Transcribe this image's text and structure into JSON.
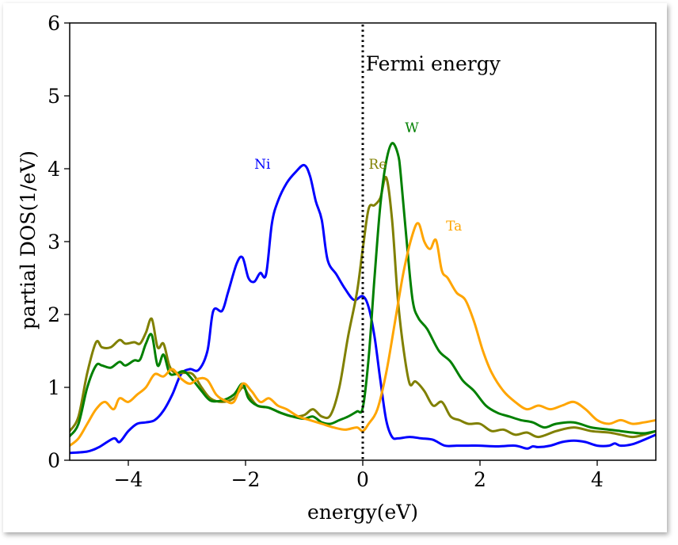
{
  "chart_data": {
    "type": "line",
    "title": "",
    "xlabel": "energy(eV)",
    "ylabel": "partial DOS(1/eV)",
    "xlim": [
      -5,
      5
    ],
    "ylim": [
      0,
      6
    ],
    "xticks": [
      -4,
      -2,
      0,
      2,
      4
    ],
    "xtick_labels": [
      "−4",
      "−2",
      "0",
      "2",
      "4"
    ],
    "yticks": [
      0,
      1,
      2,
      3,
      4,
      5,
      6
    ],
    "ytick_labels": [
      "0",
      "1",
      "2",
      "3",
      "4",
      "5",
      "6"
    ],
    "grid": false,
    "vline": {
      "x": 0,
      "style": "dotted",
      "color": "#000000",
      "label": "Fermi energy",
      "label_pos": [
        0.05,
        5.35
      ]
    },
    "series": [
      {
        "name": "Ni",
        "color": "#0000ff",
        "label_pos": [
          -1.85,
          4.0
        ],
        "x": [
          -5.0,
          -4.7,
          -4.5,
          -4.25,
          -4.15,
          -4.0,
          -3.85,
          -3.7,
          -3.55,
          -3.4,
          -3.25,
          -3.1,
          -2.95,
          -2.8,
          -2.65,
          -2.55,
          -2.4,
          -2.3,
          -2.15,
          -2.05,
          -1.95,
          -1.85,
          -1.75,
          -1.65,
          -1.55,
          -1.45,
          -1.3,
          -1.15,
          -1.0,
          -0.9,
          -0.8,
          -0.7,
          -0.6,
          -0.45,
          -0.3,
          -0.15,
          0.0,
          0.1,
          0.2,
          0.3,
          0.4,
          0.5,
          0.6,
          0.8,
          1.0,
          1.2,
          1.4,
          1.6,
          1.8,
          2.0,
          2.3,
          2.6,
          2.8,
          2.9,
          3.0,
          3.2,
          3.4,
          3.6,
          3.8,
          4.0,
          4.2,
          4.3,
          4.4,
          4.6,
          4.8,
          5.0
        ],
        "y": [
          0.1,
          0.12,
          0.18,
          0.3,
          0.25,
          0.4,
          0.5,
          0.52,
          0.55,
          0.68,
          0.9,
          1.18,
          1.25,
          1.24,
          1.5,
          2.05,
          2.05,
          2.3,
          2.7,
          2.78,
          2.5,
          2.45,
          2.57,
          2.55,
          3.25,
          3.55,
          3.8,
          3.95,
          4.05,
          3.9,
          3.55,
          3.3,
          2.75,
          2.55,
          2.35,
          2.2,
          2.25,
          2.1,
          1.7,
          1.1,
          0.55,
          0.32,
          0.3,
          0.32,
          0.3,
          0.28,
          0.2,
          0.2,
          0.2,
          0.2,
          0.19,
          0.2,
          0.16,
          0.19,
          0.18,
          0.2,
          0.25,
          0.27,
          0.25,
          0.2,
          0.2,
          0.23,
          0.2,
          0.22,
          0.28,
          0.35
        ]
      },
      {
        "name": "Re",
        "color": "#808000",
        "label_pos": [
          0.1,
          4.0
        ],
        "x": [
          -5.0,
          -4.85,
          -4.7,
          -4.55,
          -4.45,
          -4.3,
          -4.15,
          -4.05,
          -3.9,
          -3.8,
          -3.7,
          -3.6,
          -3.5,
          -3.4,
          -3.3,
          -3.2,
          -3.05,
          -2.9,
          -2.75,
          -2.6,
          -2.4,
          -2.2,
          -2.05,
          -1.95,
          -1.8,
          -1.6,
          -1.4,
          -1.2,
          -1.0,
          -0.85,
          -0.7,
          -0.55,
          -0.4,
          -0.25,
          -0.1,
          0.0,
          0.1,
          0.2,
          0.3,
          0.4,
          0.5,
          0.6,
          0.7,
          0.8,
          0.9,
          1.05,
          1.2,
          1.35,
          1.5,
          1.65,
          1.8,
          2.0,
          2.2,
          2.4,
          2.6,
          2.8,
          3.0,
          3.3,
          3.6,
          3.9,
          4.2,
          4.4,
          4.6,
          4.8,
          5.0
        ],
        "y": [
          0.4,
          0.6,
          1.2,
          1.62,
          1.55,
          1.55,
          1.65,
          1.6,
          1.62,
          1.6,
          1.75,
          1.94,
          1.55,
          1.6,
          1.3,
          1.2,
          1.2,
          1.18,
          1.0,
          0.85,
          0.8,
          0.85,
          1.0,
          0.9,
          0.75,
          0.72,
          0.65,
          0.6,
          0.62,
          0.7,
          0.6,
          0.62,
          1.0,
          1.7,
          2.3,
          2.9,
          3.45,
          3.5,
          3.6,
          3.88,
          3.3,
          2.2,
          1.5,
          1.05,
          1.08,
          0.95,
          0.75,
          0.8,
          0.6,
          0.55,
          0.5,
          0.5,
          0.4,
          0.42,
          0.35,
          0.38,
          0.32,
          0.4,
          0.45,
          0.4,
          0.38,
          0.35,
          0.32,
          0.35,
          0.4
        ]
      },
      {
        "name": "W",
        "color": "#008000",
        "label_pos": [
          0.72,
          4.5
        ],
        "x": [
          -5.0,
          -4.85,
          -4.7,
          -4.55,
          -4.45,
          -4.3,
          -4.15,
          -4.05,
          -3.9,
          -3.8,
          -3.7,
          -3.6,
          -3.5,
          -3.4,
          -3.3,
          -3.2,
          -3.05,
          -2.9,
          -2.75,
          -2.6,
          -2.4,
          -2.2,
          -2.05,
          -1.95,
          -1.8,
          -1.6,
          -1.4,
          -1.2,
          -1.0,
          -0.85,
          -0.7,
          -0.55,
          -0.4,
          -0.25,
          -0.1,
          0.0,
          0.1,
          0.2,
          0.3,
          0.4,
          0.5,
          0.6,
          0.65,
          0.75,
          0.85,
          0.95,
          1.1,
          1.3,
          1.5,
          1.7,
          1.9,
          2.1,
          2.3,
          2.5,
          2.7,
          2.9,
          3.1,
          3.3,
          3.6,
          3.9,
          4.2,
          4.4,
          4.6,
          4.8,
          5.0
        ],
        "y": [
          0.33,
          0.5,
          1.0,
          1.3,
          1.3,
          1.27,
          1.35,
          1.3,
          1.37,
          1.38,
          1.6,
          1.72,
          1.3,
          1.45,
          1.2,
          1.18,
          1.22,
          1.1,
          0.95,
          0.82,
          0.82,
          0.9,
          1.05,
          0.85,
          0.75,
          0.72,
          0.65,
          0.6,
          0.57,
          0.6,
          0.52,
          0.5,
          0.55,
          0.6,
          0.67,
          0.72,
          1.4,
          2.5,
          3.5,
          4.1,
          4.35,
          4.2,
          3.9,
          3.0,
          2.2,
          1.95,
          1.8,
          1.5,
          1.35,
          1.1,
          0.95,
          0.75,
          0.65,
          0.6,
          0.55,
          0.52,
          0.45,
          0.5,
          0.52,
          0.45,
          0.42,
          0.4,
          0.38,
          0.37,
          0.4
        ]
      },
      {
        "name": "Ta",
        "color": "#ffa500",
        "label_pos": [
          1.42,
          3.15
        ],
        "x": [
          -5.0,
          -4.85,
          -4.7,
          -4.55,
          -4.4,
          -4.25,
          -4.15,
          -4.0,
          -3.85,
          -3.7,
          -3.55,
          -3.4,
          -3.25,
          -3.1,
          -2.95,
          -2.8,
          -2.65,
          -2.5,
          -2.35,
          -2.2,
          -2.05,
          -1.9,
          -1.75,
          -1.6,
          -1.45,
          -1.3,
          -1.1,
          -0.9,
          -0.7,
          -0.5,
          -0.3,
          -0.1,
          0.0,
          0.1,
          0.25,
          0.4,
          0.55,
          0.7,
          0.85,
          0.95,
          1.05,
          1.15,
          1.25,
          1.35,
          1.45,
          1.6,
          1.75,
          1.9,
          2.05,
          2.2,
          2.4,
          2.6,
          2.8,
          3.0,
          3.2,
          3.4,
          3.6,
          3.8,
          4.0,
          4.2,
          4.4,
          4.6,
          4.8,
          5.0
        ],
        "y": [
          0.2,
          0.3,
          0.5,
          0.7,
          0.8,
          0.7,
          0.85,
          0.8,
          0.9,
          1.0,
          1.18,
          1.15,
          1.25,
          1.12,
          1.05,
          1.12,
          1.1,
          0.9,
          0.82,
          0.8,
          1.05,
          0.95,
          0.8,
          0.85,
          0.75,
          0.7,
          0.6,
          0.55,
          0.5,
          0.45,
          0.42,
          0.45,
          0.4,
          0.5,
          0.7,
          1.2,
          1.9,
          2.6,
          3.1,
          3.25,
          3.0,
          2.9,
          3.02,
          2.6,
          2.5,
          2.3,
          2.2,
          1.9,
          1.5,
          1.2,
          0.95,
          0.8,
          0.7,
          0.75,
          0.7,
          0.75,
          0.8,
          0.7,
          0.55,
          0.5,
          0.55,
          0.5,
          0.52,
          0.55
        ]
      }
    ]
  }
}
